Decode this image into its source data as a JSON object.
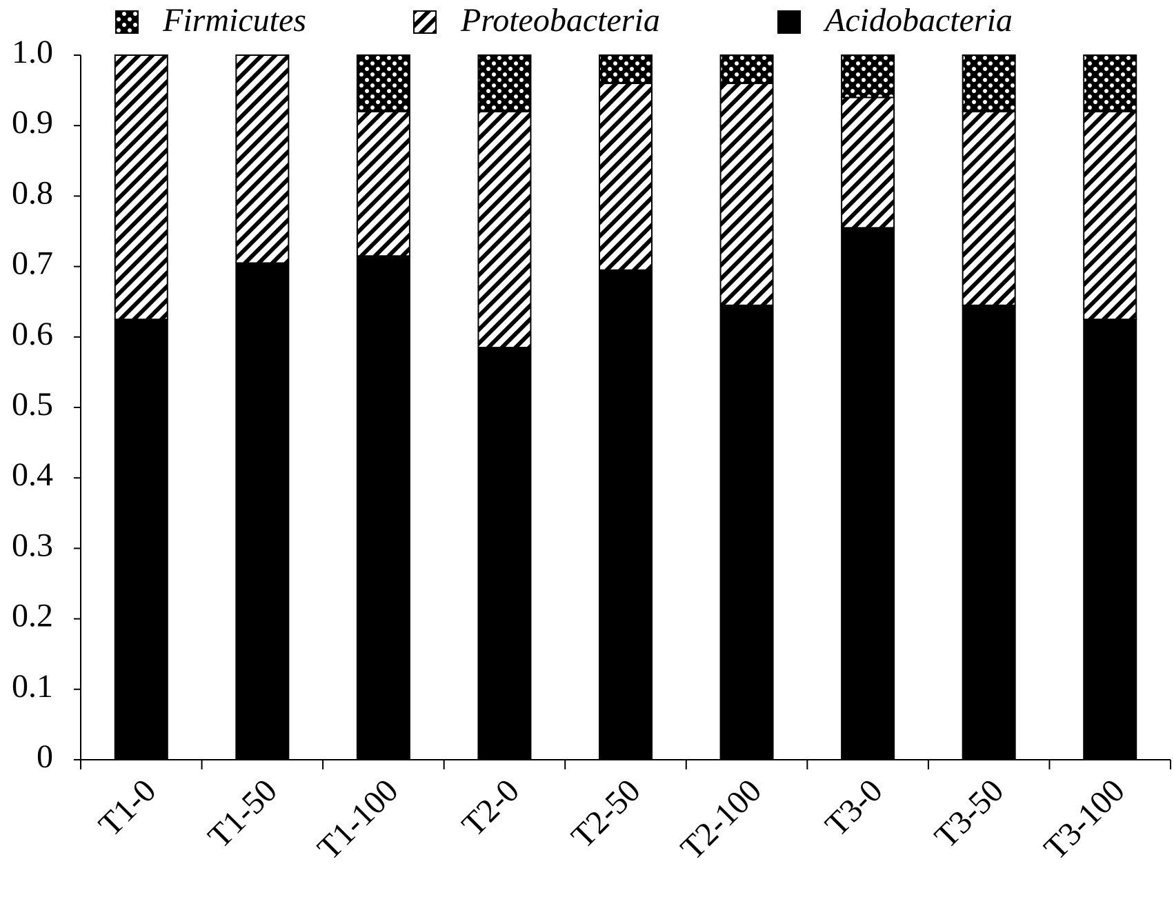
{
  "chart_data": {
    "type": "stacked_bar",
    "categories": [
      "T1-0",
      "T1-50",
      "T1-100",
      "T2-0",
      "T2-50",
      "T2-100",
      "T3-0",
      "T3-50",
      "T3-100"
    ],
    "series": [
      {
        "name": "Firmicutes",
        "color": "#000000",
        "pattern": "dots",
        "values": [
          0,
          0,
          0.08,
          0.08,
          0.04,
          0.04,
          0.06,
          0.08,
          0.08
        ]
      },
      {
        "name": "Proteobacteria",
        "color": "#000000",
        "pattern": "diagonal",
        "values": [
          0.375,
          0.295,
          0.205,
          0.335,
          0.265,
          0.315,
          0.185,
          0.275,
          0.295
        ]
      },
      {
        "name": "Acidobacteria",
        "color": "#000000",
        "pattern": "solid",
        "values": [
          0.625,
          0.705,
          0.715,
          0.585,
          0.695,
          0.645,
          0.755,
          0.645,
          0.625
        ]
      }
    ],
    "stack_order": "bottom_is_last",
    "ylim": [
      0,
      1
    ],
    "yticks": [
      0,
      0.1,
      0.2,
      0.3,
      0.4,
      0.5,
      0.6,
      0.7,
      0.8,
      0.9,
      {
        "value": 1,
        "label": "1.0"
      }
    ],
    "grid": false,
    "legend": "top"
  }
}
